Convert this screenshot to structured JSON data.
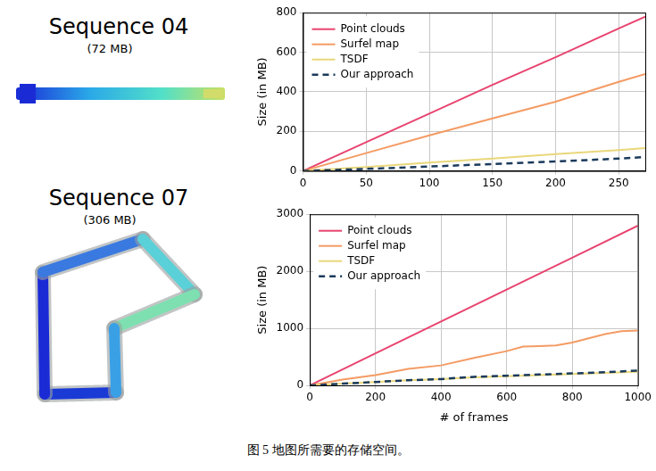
{
  "figure": {
    "maps": [
      {
        "title": "Sequence 04",
        "size_label": "(72 MB)"
      },
      {
        "title": "Sequence 07",
        "size_label": "(306 MB)"
      }
    ],
    "caption": "图 5 地图所需要的存储空间。"
  },
  "chart_data": [
    {
      "type": "line",
      "ylabel": "Size (in MB)",
      "xlim": [
        0,
        271
      ],
      "xticks": [
        0,
        50,
        100,
        150,
        200,
        250
      ],
      "ylim": [
        0,
        800
      ],
      "yticks": [
        0,
        200,
        400,
        600,
        800
      ],
      "grid": true,
      "legend": "top-left",
      "series": [
        {
          "name": "Point clouds",
          "color": "#e8446f",
          "line_style": "solid",
          "x": [
            0,
            50,
            100,
            150,
            200,
            250,
            271
          ],
          "values": [
            0,
            145,
            290,
            435,
            575,
            720,
            780
          ]
        },
        {
          "name": "Surfel map",
          "color": "#f49b64",
          "line_style": "solid",
          "x": [
            0,
            50,
            100,
            150,
            200,
            250,
            271
          ],
          "values": [
            0,
            90,
            180,
            265,
            350,
            450,
            490
          ]
        },
        {
          "name": "TSDF",
          "color": "#e9d77a",
          "line_style": "solid",
          "x": [
            0,
            50,
            100,
            150,
            200,
            250,
            271
          ],
          "values": [
            0,
            20,
            42,
            63,
            85,
            105,
            115
          ]
        },
        {
          "name": "Our approach",
          "color": "#1b3a5c",
          "line_style": "dashed",
          "x": [
            0,
            50,
            100,
            150,
            200,
            250,
            271
          ],
          "values": [
            0,
            10,
            22,
            35,
            48,
            62,
            70
          ]
        }
      ]
    },
    {
      "type": "line",
      "xlabel": "# of frames",
      "ylabel": "Size (in MB)",
      "xlim": [
        0,
        1000
      ],
      "xticks": [
        0,
        200,
        400,
        600,
        800,
        1000
      ],
      "ylim": [
        0,
        3000
      ],
      "yticks": [
        0,
        1000,
        2000,
        3000
      ],
      "grid": true,
      "legend": "top-left",
      "series": [
        {
          "name": "Point clouds",
          "color": "#e8446f",
          "line_style": "solid",
          "x": [
            0,
            200,
            400,
            600,
            800,
            1000
          ],
          "values": [
            0,
            560,
            1120,
            1680,
            2240,
            2800
          ]
        },
        {
          "name": "Surfel map",
          "color": "#f49b64",
          "line_style": "solid",
          "x": [
            0,
            100,
            200,
            300,
            400,
            500,
            600,
            650,
            700,
            750,
            800,
            900,
            950,
            1000
          ],
          "values": [
            0,
            100,
            180,
            290,
            350,
            480,
            600,
            680,
            690,
            700,
            750,
            900,
            950,
            960
          ]
        },
        {
          "name": "TSDF",
          "color": "#e9d77a",
          "line_style": "solid",
          "x": [
            0,
            100,
            200,
            300,
            400,
            500,
            600,
            700,
            800,
            900,
            1000
          ],
          "values": [
            0,
            30,
            60,
            90,
            110,
            140,
            160,
            180,
            200,
            220,
            240
          ]
        },
        {
          "name": "Our approach",
          "color": "#1b3a5c",
          "line_style": "dashed",
          "x": [
            0,
            100,
            200,
            300,
            400,
            500,
            600,
            700,
            800,
            900,
            1000
          ],
          "values": [
            0,
            30,
            60,
            90,
            110,
            150,
            170,
            190,
            210,
            230,
            260
          ]
        }
      ]
    }
  ]
}
